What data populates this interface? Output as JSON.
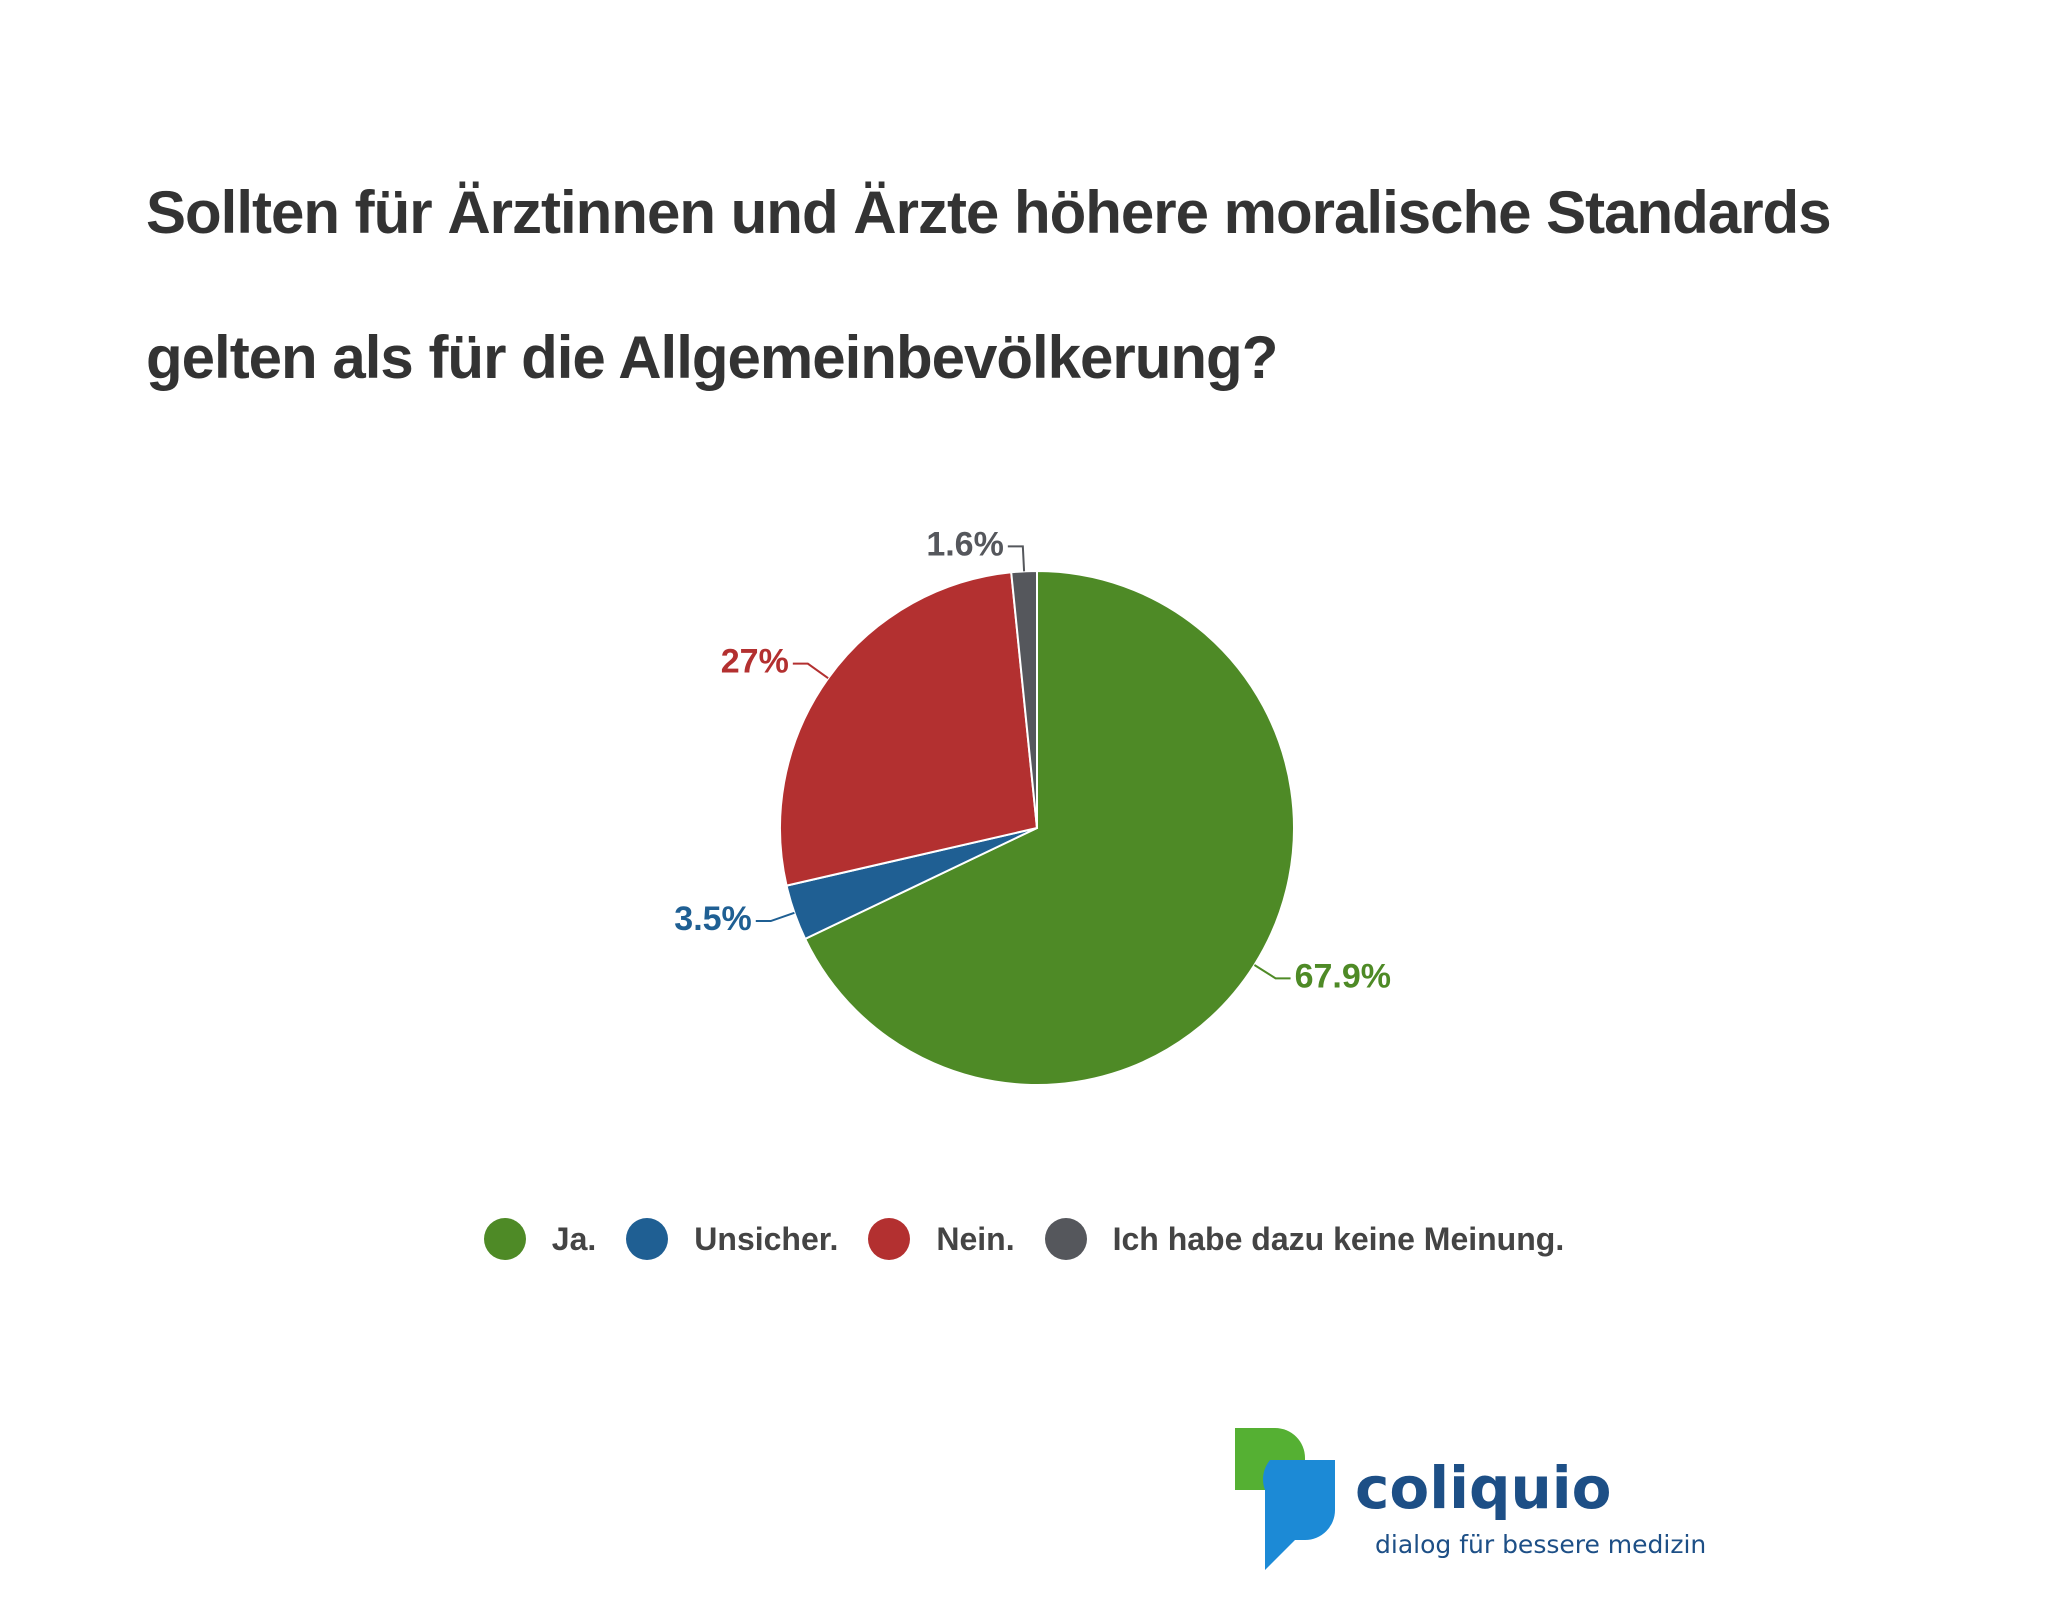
{
  "chart_data": {
    "type": "pie",
    "title": "Sollten für Ärztinnen und Ärzte höhere moralische Standards gelten als für die Allgemeinbevölkerung?",
    "categories": [
      "Ja.",
      "Unsicher.",
      "Nein.",
      "Ich habe dazu keine Meinung."
    ],
    "values": [
      67.9,
      3.5,
      27,
      1.6
    ],
    "value_labels": [
      "67.9%",
      "3.5%",
      "27%",
      "1.6%"
    ],
    "colors": [
      "#4e8a26",
      "#1f5f93",
      "#b33030",
      "#55575c"
    ],
    "legend": "bottom"
  },
  "logo": {
    "name": "coliquio",
    "tagline": "dialog für bessere medizin"
  }
}
